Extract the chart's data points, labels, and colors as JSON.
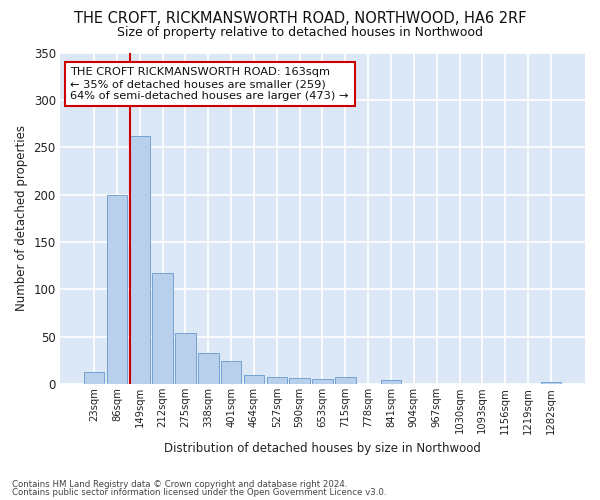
{
  "title": "THE CROFT, RICKMANSWORTH ROAD, NORTHWOOD, HA6 2RF",
  "subtitle": "Size of property relative to detached houses in Northwood",
  "xlabel": "Distribution of detached houses by size in Northwood",
  "ylabel": "Number of detached properties",
  "bar_labels": [
    "23sqm",
    "86sqm",
    "149sqm",
    "212sqm",
    "275sqm",
    "338sqm",
    "401sqm",
    "464sqm",
    "527sqm",
    "590sqm",
    "653sqm",
    "715sqm",
    "778sqm",
    "841sqm",
    "904sqm",
    "967sqm",
    "1030sqm",
    "1093sqm",
    "1156sqm",
    "1219sqm",
    "1282sqm"
  ],
  "bar_values": [
    13,
    200,
    262,
    117,
    54,
    33,
    24,
    10,
    8,
    7,
    5,
    8,
    0,
    4,
    0,
    0,
    0,
    0,
    0,
    0,
    2
  ],
  "bar_color": "#b8d0eb",
  "bar_edge_color": "#6699cc",
  "plot_bg_color": "#dce8f5",
  "fig_bg_color": "#ffffff",
  "grid_color": "#ffffff",
  "redline_color": "#cc0000",
  "annotation_text": "THE CROFT RICKMANSWORTH ROAD: 163sqm\n← 35% of detached houses are smaller (259)\n64% of semi-detached houses are larger (473) →",
  "annotation_box_facecolor": "#ffffff",
  "annotation_box_edgecolor": "#cc0000",
  "ylim": [
    0,
    350
  ],
  "yticks": [
    0,
    50,
    100,
    150,
    200,
    250,
    300,
    350
  ],
  "footnote1": "Contains HM Land Registry data © Crown copyright and database right 2024.",
  "footnote2": "Contains public sector information licensed under the Open Government Licence v3.0."
}
